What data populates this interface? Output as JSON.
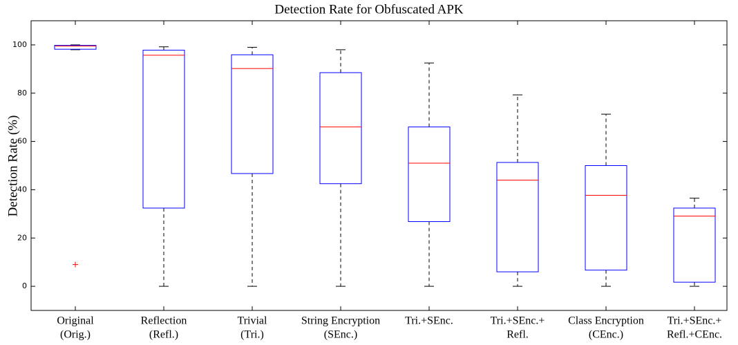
{
  "chart_data": {
    "type": "box",
    "title": "Detection Rate for Obfuscated APK",
    "y_label": "Detection Rate (%)",
    "categories": [
      [
        "Original",
        "(Orig.)"
      ],
      [
        "Reflection",
        "(Refl.)"
      ],
      [
        "Trivial",
        "(Tri.)"
      ],
      [
        "String Encryption",
        "(SEnc.)"
      ],
      [
        "Tri.+SEnc."
      ],
      [
        "Tri.+SEnc.+",
        "Refl."
      ],
      [
        "Class Encryption",
        "(CEnc.)"
      ],
      [
        "Tri.+SEnc.+",
        "Refl.+CEnc."
      ]
    ],
    "boxes": [
      {
        "min": 98,
        "q1": 98.2,
        "median": 99.5,
        "q3": 99.8,
        "max": 100,
        "outliers": [
          9
        ]
      },
      {
        "min": 0,
        "q1": 32.4,
        "median": 95.7,
        "q3": 97.8,
        "max": 99.2,
        "outliers": []
      },
      {
        "min": 0,
        "q1": 46.7,
        "median": 90.2,
        "q3": 95.9,
        "max": 99,
        "outliers": []
      },
      {
        "min": 0,
        "q1": 42.5,
        "median": 66,
        "q3": 88.5,
        "max": 98,
        "outliers": []
      },
      {
        "min": 0,
        "q1": 26.8,
        "median": 51,
        "q3": 66,
        "max": 92.5,
        "outliers": []
      },
      {
        "min": 0,
        "q1": 6,
        "median": 44,
        "q3": 51.3,
        "max": 79.3,
        "outliers": []
      },
      {
        "min": 0,
        "q1": 6.7,
        "median": 37.7,
        "q3": 50,
        "max": 71.3,
        "outliers": []
      },
      {
        "min": 0,
        "q1": 1.7,
        "median": 29.1,
        "q3": 32.4,
        "max": 36.5,
        "outliers": []
      }
    ],
    "box_color": "#0000ff",
    "median_color": "#ff0000",
    "whisker_color": "#000000",
    "outlier_color": "#ff0000",
    "ylim": [
      -10,
      110
    ],
    "yticks": [
      0,
      20,
      40,
      60,
      80,
      100
    ]
  }
}
